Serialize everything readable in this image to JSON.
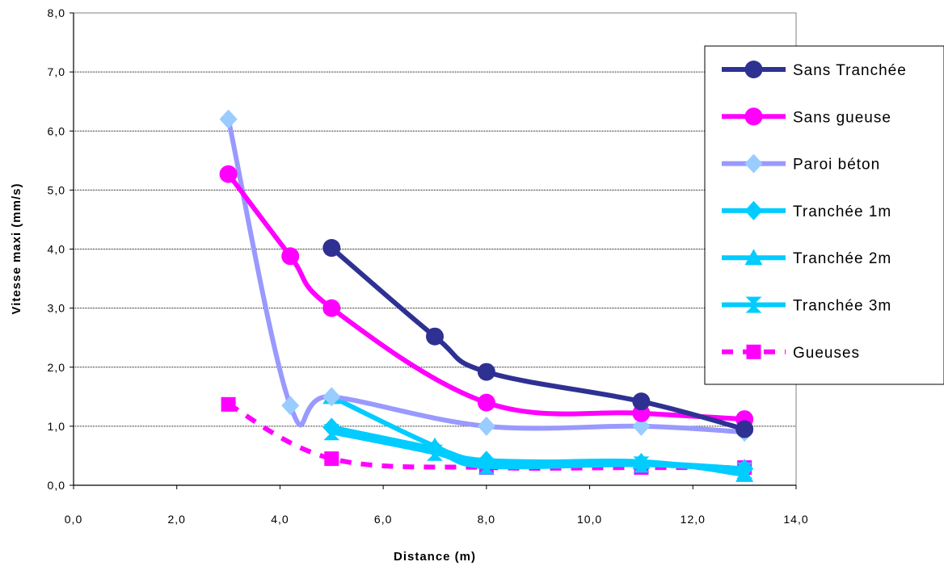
{
  "chart_data": {
    "type": "line",
    "xlabel": "Distance (m)",
    "ylabel": "Vitesse maxi (mm/s)",
    "xlim": [
      0,
      14
    ],
    "ylim": [
      0,
      8
    ],
    "x_ticks": [
      "0,0",
      "2,0",
      "4,0",
      "6,0",
      "8,0",
      "10,0",
      "12,0",
      "14,0"
    ],
    "y_ticks": [
      "0,0",
      "1,0",
      "2,0",
      "3,0",
      "4,0",
      "5,0",
      "6,0",
      "7,0",
      "8,0"
    ],
    "grid": "horizontal",
    "legend_position": "right",
    "series": [
      {
        "name": "Sans Tranchée",
        "color": "#2e3192",
        "marker": "circle",
        "dash": "solid",
        "smooth": true,
        "x": [
          5,
          7,
          8,
          11,
          13
        ],
        "y": [
          4.02,
          2.52,
          1.92,
          1.42,
          0.95
        ]
      },
      {
        "name": "Sans gueuse",
        "color": "#ff00ff",
        "marker": "circle",
        "dash": "solid",
        "smooth": true,
        "x": [
          3,
          4.2,
          5,
          8,
          11,
          13
        ],
        "y": [
          5.27,
          3.88,
          3.0,
          1.4,
          1.22,
          1.12
        ]
      },
      {
        "name": "Paroi béton",
        "color": "#9999ff",
        "marker_color": "#99ccff",
        "marker": "diamond",
        "dash": "solid",
        "smooth": true,
        "x": [
          3,
          4.2,
          5,
          8,
          11,
          13
        ],
        "y": [
          6.2,
          1.35,
          1.5,
          1.0,
          1.0,
          0.9
        ]
      },
      {
        "name": "Tranchée 1m",
        "color": "#00ccff",
        "marker": "diamond",
        "dash": "solid",
        "smooth": true,
        "x": [
          5,
          7,
          8,
          11,
          13
        ],
        "y": [
          0.98,
          0.62,
          0.42,
          0.38,
          0.28
        ]
      },
      {
        "name": "Tranchée 2m",
        "color": "#00ccff",
        "marker": "triangle",
        "dash": "solid",
        "smooth": true,
        "x": [
          5,
          7,
          8,
          11,
          13
        ],
        "y": [
          1.5,
          0.66,
          0.4,
          0.4,
          0.18
        ]
      },
      {
        "name": "Tranchée 3m",
        "color": "#00ccff",
        "marker": "hourglass",
        "dash": "solid",
        "smooth": true,
        "x": [
          5,
          7,
          8,
          11,
          13
        ],
        "y": [
          0.9,
          0.55,
          0.32,
          0.35,
          0.25
        ]
      },
      {
        "name": "Gueuses",
        "color": "#ff00ff",
        "marker": "square",
        "dash": "dashed",
        "smooth": true,
        "x": [
          3,
          5,
          8,
          11,
          13
        ],
        "y": [
          1.37,
          0.45,
          0.3,
          0.3,
          0.3
        ]
      }
    ]
  }
}
